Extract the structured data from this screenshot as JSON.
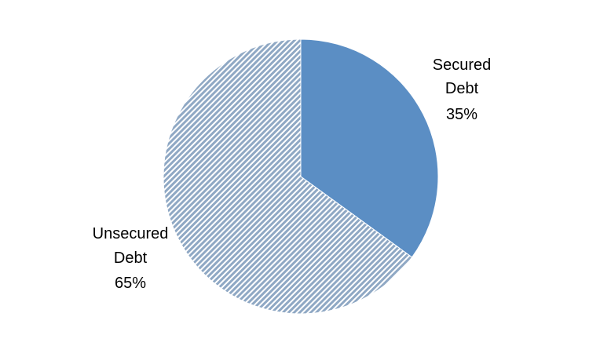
{
  "chart_data": {
    "type": "pie",
    "title": "",
    "start_angle_deg": 0,
    "direction": "clockwise",
    "slices": [
      {
        "label_lines": [
          "Secured",
          "Debt"
        ],
        "percent_label": "35%",
        "value": 35,
        "color": "#5b8ec4",
        "pattern": "solid"
      },
      {
        "label_lines": [
          "Unsecured",
          "Debt"
        ],
        "percent_label": "65%",
        "value": 65,
        "color": "#8fa8c4",
        "pattern": "diagonal-stripes"
      }
    ],
    "legend": "none",
    "data_labels": "outside"
  }
}
